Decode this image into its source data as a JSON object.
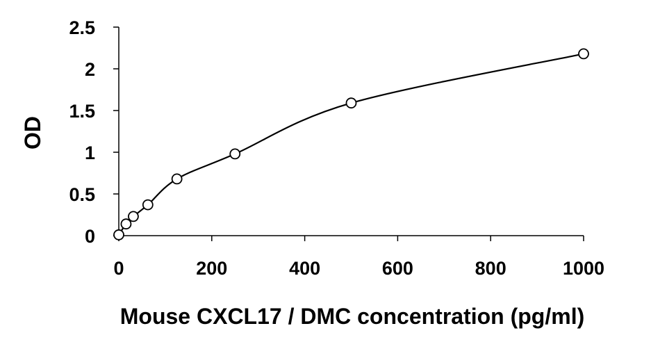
{
  "chart_data": {
    "type": "scatter",
    "title": "",
    "xlabel": "Mouse CXCL17 / DMC concentration (pg/ml)",
    "ylabel": "OD",
    "xlim": [
      0,
      1000
    ],
    "ylim": [
      0,
      2.5
    ],
    "x_ticks": [
      0,
      200,
      400,
      600,
      800,
      1000
    ],
    "x_tick_labels": [
      "0",
      "200",
      "400",
      "600",
      "800",
      "1000"
    ],
    "y_ticks": [
      0,
      0.5,
      1,
      1.5,
      2,
      2.5
    ],
    "y_tick_labels": [
      "0",
      "0.5",
      "1",
      "1.5",
      "2",
      "2.5"
    ],
    "grid": false,
    "legend": "none",
    "series": [
      {
        "marker": "open-circle",
        "trendline": "smooth",
        "points": [
          {
            "x": 0,
            "y": 0.01
          },
          {
            "x": 15.6,
            "y": 0.14
          },
          {
            "x": 31.25,
            "y": 0.23
          },
          {
            "x": 62.5,
            "y": 0.37
          },
          {
            "x": 125,
            "y": 0.68
          },
          {
            "x": 250,
            "y": 0.98
          },
          {
            "x": 500,
            "y": 1.59
          },
          {
            "x": 1000,
            "y": 2.18
          }
        ]
      }
    ],
    "colors": {
      "line": "#000000",
      "marker_fill": "#ffffff",
      "text": "#000000"
    }
  }
}
